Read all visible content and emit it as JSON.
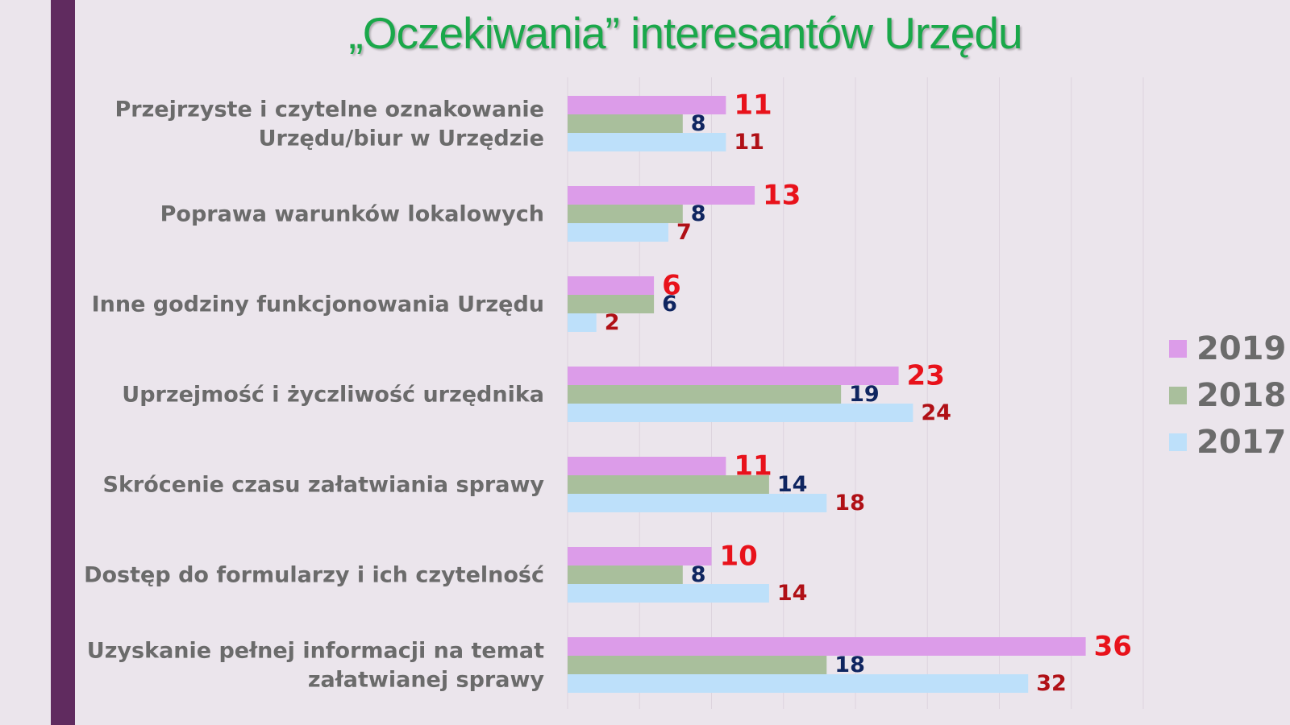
{
  "colors": {
    "background": "#ebe5ec",
    "side_bar": "#602b5f",
    "title": "#1aa84a"
  },
  "chart_data": {
    "type": "bar",
    "orientation": "horizontal",
    "title": "„Oczekiwania” interesantów Urzędu",
    "categories": [
      "Przejrzyste i czytelne oznakowanie Urzędu/biur w Urzędzie",
      "Poprawa warunków lokalowych",
      "Inne godziny funkcjonowania Urzędu",
      "Uprzejmość i życzliwość urzędnika",
      "Skrócenie czasu załatwiania sprawy",
      "Dostęp do formularzy i ich czytelność",
      "Uzyskanie pełnej informacji na temat załatwianej sprawy"
    ],
    "category_lines": [
      [
        "Przejrzyste i czytelne oznakowanie",
        "Urzędu/biur w Urzędzie"
      ],
      [
        "Poprawa warunków lokalowych"
      ],
      [
        "Inne godziny funkcjonowania Urzędu"
      ],
      [
        "Uprzejmość i życzliwość urzędnika"
      ],
      [
        "Skrócenie czasu załatwiania sprawy"
      ],
      [
        "Dostęp do formularzy i ich czytelność"
      ],
      [
        "Uzyskanie pełnej informacji na temat",
        "załatwianej sprawy"
      ]
    ],
    "series": [
      {
        "name": "2019",
        "color": "#dc9ce9",
        "label_color": "#e8121b",
        "values": [
          11,
          13,
          6,
          23,
          11,
          10,
          36
        ]
      },
      {
        "name": "2018",
        "color": "#a9bf9c",
        "label_color": "#0f2560",
        "values": [
          8,
          8,
          6,
          19,
          14,
          8,
          18
        ]
      },
      {
        "name": "2017",
        "color": "#bde0fa",
        "label_color": "#b01016",
        "values": [
          11,
          7,
          2,
          24,
          18,
          14,
          32
        ]
      }
    ],
    "xlim": [
      0,
      40
    ],
    "grid": true,
    "data_labels": true,
    "legend_position": "right"
  }
}
